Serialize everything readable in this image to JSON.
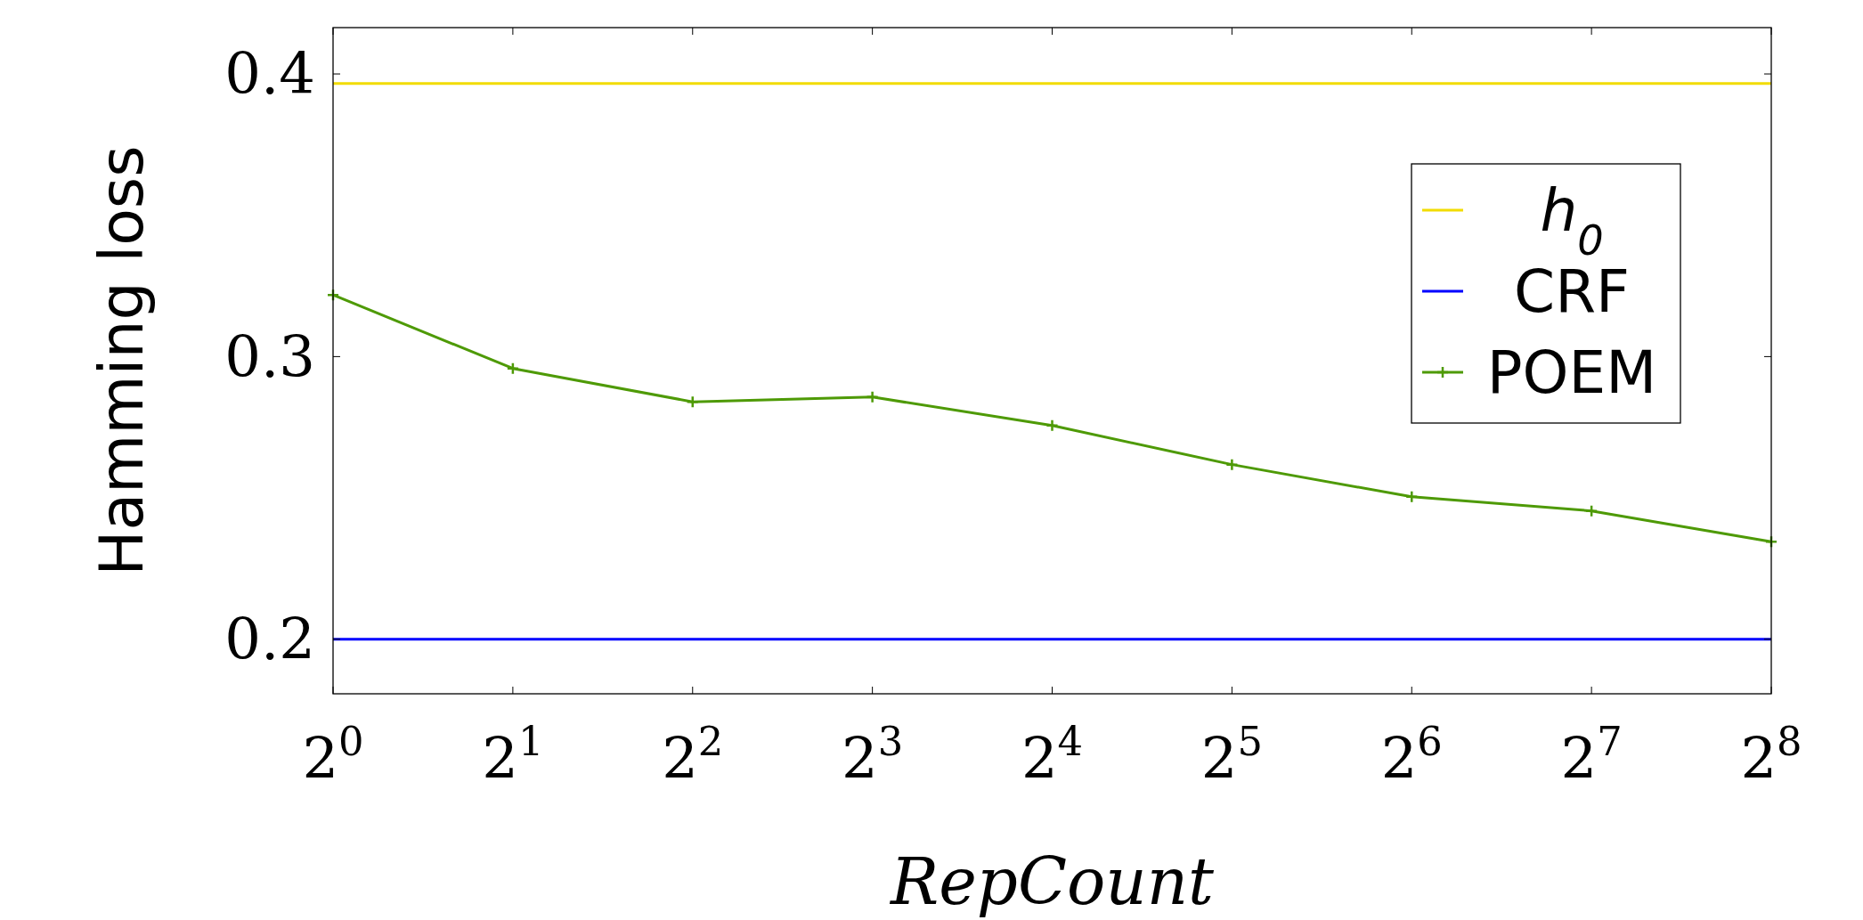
{
  "chart_data": {
    "type": "line",
    "xlabel": "RepCount",
    "ylabel": "Hamming loss",
    "log": "x",
    "xlim": [
      1,
      256
    ],
    "ylim": [
      0.1807,
      0.4164
    ],
    "xticks": [
      {
        "value": 1,
        "label": "2$^{0}$"
      },
      {
        "value": 2,
        "label": "2$^{1}$"
      },
      {
        "value": 4,
        "label": "2$^{2}$"
      },
      {
        "value": 8,
        "label": "2$^{3}$"
      },
      {
        "value": 16,
        "label": "2$^{4}$"
      },
      {
        "value": 32,
        "label": "2$^{5}$"
      },
      {
        "value": 64,
        "label": "2$^{6}$"
      },
      {
        "value": 128,
        "label": "2$^{7}$"
      },
      {
        "value": 256,
        "label": "2$^{8}$"
      }
    ],
    "yticks": [
      0.2,
      0.3,
      0.4
    ],
    "x": [
      1,
      2,
      4,
      8,
      16,
      32,
      64,
      128,
      256
    ],
    "legend": "right",
    "grid": false,
    "series": [
      {
        "name": "h$_{0}$",
        "color": "#f2dc00",
        "marker": "none",
        "values": [
          0.3966,
          0.3966,
          0.3966,
          0.3966,
          0.3966,
          0.3966,
          0.3966,
          0.3966,
          0.3966
        ]
      },
      {
        "name": "CRF",
        "color": "#0000ff",
        "marker": "none",
        "values": [
          0.2,
          0.2,
          0.2,
          0.2,
          0.2,
          0.2,
          0.2,
          0.2,
          0.2
        ]
      },
      {
        "name": "POEM",
        "color": "#4e9a06",
        "marker": "cross",
        "values": [
          0.3218,
          0.2958,
          0.284,
          0.2857,
          0.2756,
          0.2618,
          0.2504,
          0.2454,
          0.2345
        ]
      }
    ]
  }
}
